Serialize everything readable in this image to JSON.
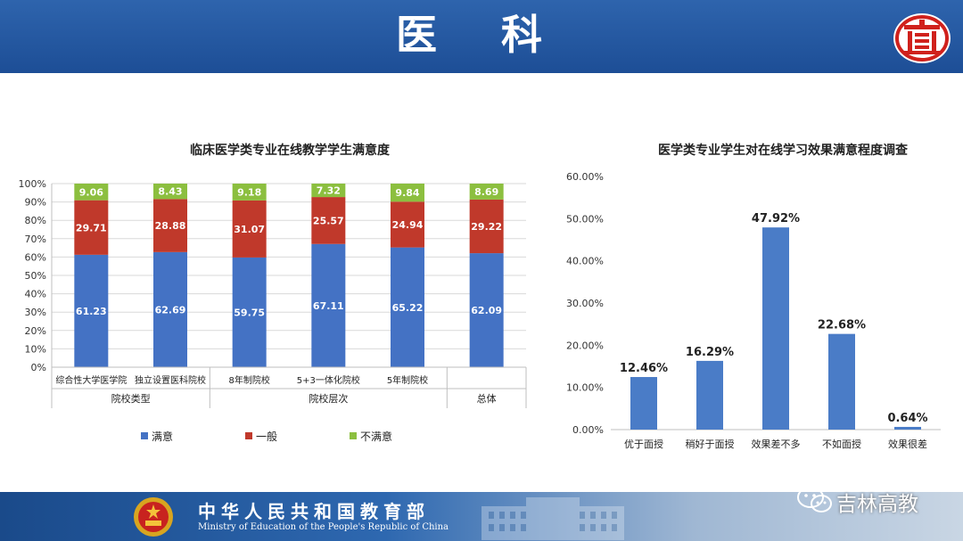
{
  "header": {
    "title": "医 科"
  },
  "footer": {
    "ministry_cn": "中华人民共和国教育部",
    "ministry_en": "Ministry of Education of the People's Republic of China",
    "watermark": "吉林高教"
  },
  "colors": {
    "satisfied": "#4472c4",
    "average": "#c0392b",
    "unsatisfied": "#8cbf3f",
    "bar": "#4a7cc7",
    "header": "#2358a2"
  },
  "chart_data": [
    {
      "type": "bar",
      "stacked": true,
      "percent_stacked": true,
      "title": "临床医学类专业在线教学学生满意度",
      "categories": [
        "综合性大学医学院",
        "独立设置医科院校",
        "8年制院校",
        "5+3一体化院校",
        "5年制院校",
        ""
      ],
      "groups": [
        {
          "label": "院校类型",
          "span": 2
        },
        {
          "label": "院校层次",
          "span": 3
        },
        {
          "label": "总体",
          "span": 1
        }
      ],
      "series": [
        {
          "name": "满意",
          "values": [
            61.23,
            62.69,
            59.75,
            67.11,
            65.22,
            62.09
          ]
        },
        {
          "name": "一般",
          "values": [
            29.71,
            28.88,
            31.07,
            25.57,
            24.94,
            29.22
          ]
        },
        {
          "name": "不满意",
          "values": [
            9.06,
            8.43,
            9.18,
            7.32,
            9.84,
            8.69
          ]
        }
      ],
      "yticks": [
        "0%",
        "10%",
        "20%",
        "30%",
        "40%",
        "50%",
        "60%",
        "70%",
        "80%",
        "90%",
        "100%"
      ],
      "ylim": [
        0,
        100
      ],
      "grid": true,
      "legend": "bottom"
    },
    {
      "type": "bar",
      "title": "医学类专业学生对在线学习效果满意程度调查",
      "categories": [
        "优于面授",
        "稍好于面授",
        "效果差不多",
        "不如面授",
        "效果很差"
      ],
      "values": [
        12.46,
        16.29,
        47.92,
        22.68,
        0.64
      ],
      "labels": [
        "12.46%",
        "16.29%",
        "47.92%",
        "22.68%",
        "0.64%"
      ],
      "yticks": [
        "0.00%",
        "10.00%",
        "20.00%",
        "30.00%",
        "40.00%",
        "50.00%",
        "60.00%"
      ],
      "ylim": [
        0,
        60
      ],
      "grid": false,
      "legend": "none"
    }
  ]
}
